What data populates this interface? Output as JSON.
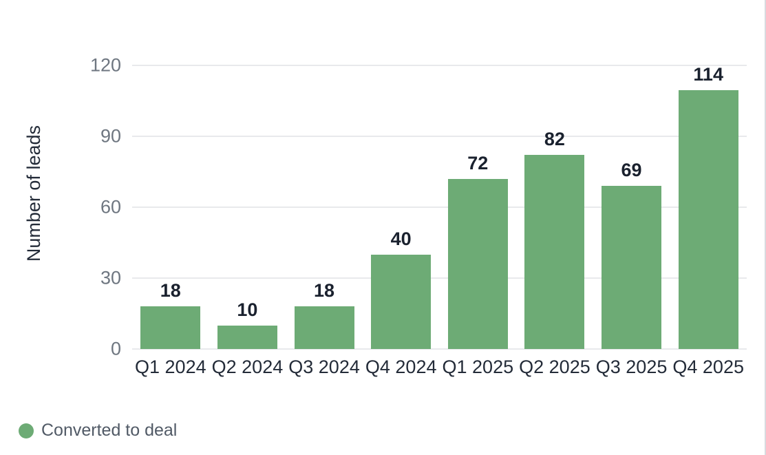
{
  "chart_data": {
    "type": "bar",
    "title": "",
    "categories": [
      "Q1 2024",
      "Q2 2024",
      "Q3 2024",
      "Q4 2024",
      "Q1 2025",
      "Q2 2025",
      "Q3 2025",
      "Q4 2025"
    ],
    "values": [
      18,
      10,
      18,
      40,
      72,
      82,
      69,
      114
    ],
    "series_name": "Converted to deal",
    "xlabel": "",
    "ylabel": "Number of leads",
    "ylim": [
      0,
      120
    ],
    "yticks": [
      0,
      30,
      60,
      90,
      120
    ],
    "grid": true,
    "data_labels": true,
    "legend_position": "bottom-left",
    "bar_color": "#6dab75"
  },
  "legend": {
    "items": [
      {
        "label": "Converted to deal",
        "color": "#6dab75"
      }
    ]
  },
  "colors": {
    "bar": "#6dab75",
    "gridline": "#e8e9ec",
    "tick_text": "#6e7680",
    "axis_text": "#232b38",
    "value_text": "#1a212e",
    "legend_text": "#515a66",
    "card_border": "#d8dadf",
    "background": "#ffffff"
  }
}
